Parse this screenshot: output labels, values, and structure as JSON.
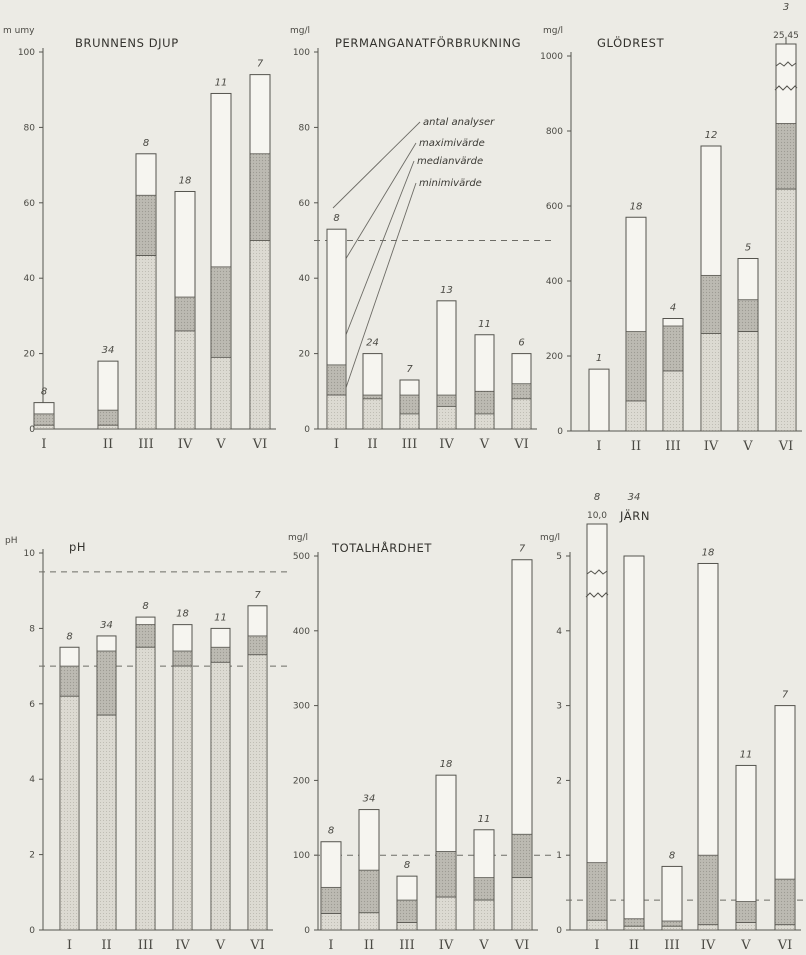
{
  "legend": [
    "antal analyser",
    "maximivärde",
    "medianvärde",
    "minimivärde"
  ],
  "colors": {
    "background": "#ecebe5",
    "min_fill": "#d9d7cf",
    "median_fill": "#b5b3ab",
    "max_fill": "#f6f5f0",
    "line": "#55544e"
  },
  "chart_data": [
    {
      "type": "bar",
      "title": "BRUNNENS DJUP",
      "unit": "m umy",
      "ylim": [
        0,
        100
      ],
      "yticks": [
        0,
        20,
        40,
        60,
        80,
        100
      ],
      "categories": [
        "I",
        "II",
        "III",
        "IV",
        "V",
        "VI"
      ],
      "n": [
        "8",
        "34",
        "8",
        "18",
        "11",
        "7"
      ],
      "min": [
        1,
        1,
        46,
        26,
        19,
        50
      ],
      "median": [
        4,
        5,
        62,
        35,
        43,
        73
      ],
      "max": [
        7,
        18,
        73,
        63,
        89,
        94
      ],
      "ref_line": null
    },
    {
      "type": "bar",
      "title": "PERMANGANATFÖRBRUKNING",
      "unit": "mg/l",
      "ylim": [
        0,
        100
      ],
      "yticks": [
        0,
        20,
        40,
        60,
        80,
        100
      ],
      "categories": [
        "I",
        "II",
        "III",
        "IV",
        "V",
        "VI"
      ],
      "n": [
        "8",
        "24",
        "7",
        "13",
        "11",
        "6"
      ],
      "min": [
        9,
        8,
        4,
        6,
        4,
        8
      ],
      "median": [
        17,
        9,
        9,
        9,
        10,
        12
      ],
      "max": [
        53,
        20,
        13,
        34,
        25,
        20
      ],
      "ref_line": 50
    },
    {
      "type": "bar",
      "title": "GLÖDREST",
      "unit": "mg/l",
      "ylim": [
        0,
        1000
      ],
      "yticks": [
        0,
        200,
        400,
        600,
        800,
        1000
      ],
      "categories": [
        "I",
        "II",
        "III",
        "IV",
        "V",
        "VI"
      ],
      "n": [
        "1",
        "18",
        "4",
        "12",
        "5",
        "3"
      ],
      "min": [
        0,
        80,
        160,
        260,
        265,
        645
      ],
      "median": [
        0,
        265,
        280,
        415,
        350,
        820
      ],
      "max": [
        165,
        570,
        300,
        760,
        460,
        1000
      ],
      "broken_label": "25,45",
      "ref_line": null
    },
    {
      "type": "bar",
      "title": "pH",
      "unit": "pH",
      "ylim": [
        0,
        10
      ],
      "yticks": [
        0,
        2,
        4,
        6,
        8,
        10
      ],
      "categories": [
        "I",
        "II",
        "III",
        "IV",
        "V",
        "VI"
      ],
      "n": [
        "8",
        "34",
        "8",
        "18",
        "11",
        "7"
      ],
      "min": [
        6.2,
        5.7,
        7.5,
        7.0,
        7.1,
        7.3
      ],
      "median": [
        7.0,
        7.4,
        8.1,
        7.4,
        7.5,
        7.8
      ],
      "max": [
        7.5,
        7.8,
        8.3,
        8.1,
        8.0,
        8.6
      ],
      "ref_line": 7.0,
      "ref_line2": 9.5
    },
    {
      "type": "bar",
      "title": "TOTALHÅRDHET",
      "unit": "mg/l",
      "ylim": [
        0,
        500
      ],
      "yticks": [
        0,
        100,
        200,
        300,
        400,
        500
      ],
      "categories": [
        "I",
        "II",
        "III",
        "IV",
        "V",
        "VI"
      ],
      "n": [
        "8",
        "34",
        "8",
        "18",
        "11",
        "7"
      ],
      "min": [
        22,
        23,
        10,
        44,
        40,
        70
      ],
      "median": [
        57,
        80,
        40,
        105,
        70,
        128
      ],
      "max": [
        118,
        161,
        72,
        207,
        134,
        495
      ],
      "ref_line": 100
    },
    {
      "type": "bar",
      "title": "JÄRN",
      "unit": "mg/l",
      "ylim": [
        0,
        5
      ],
      "yticks": [
        0,
        1,
        2,
        3,
        4,
        5
      ],
      "categories": [
        "I",
        "II",
        "III",
        "IV",
        "V",
        "VI"
      ],
      "n": [
        "8",
        "34",
        "8",
        "18",
        "11",
        "7"
      ],
      "min": [
        0.13,
        0.05,
        0.05,
        0.07,
        0.1,
        0.07
      ],
      "median": [
        0.9,
        0.15,
        0.12,
        1.0,
        0.38,
        0.68
      ],
      "max": [
        5.0,
        5.1,
        0.85,
        4.9,
        2.2,
        3.0
      ],
      "broken_label": "10,0",
      "ref_line": 0.4
    }
  ]
}
